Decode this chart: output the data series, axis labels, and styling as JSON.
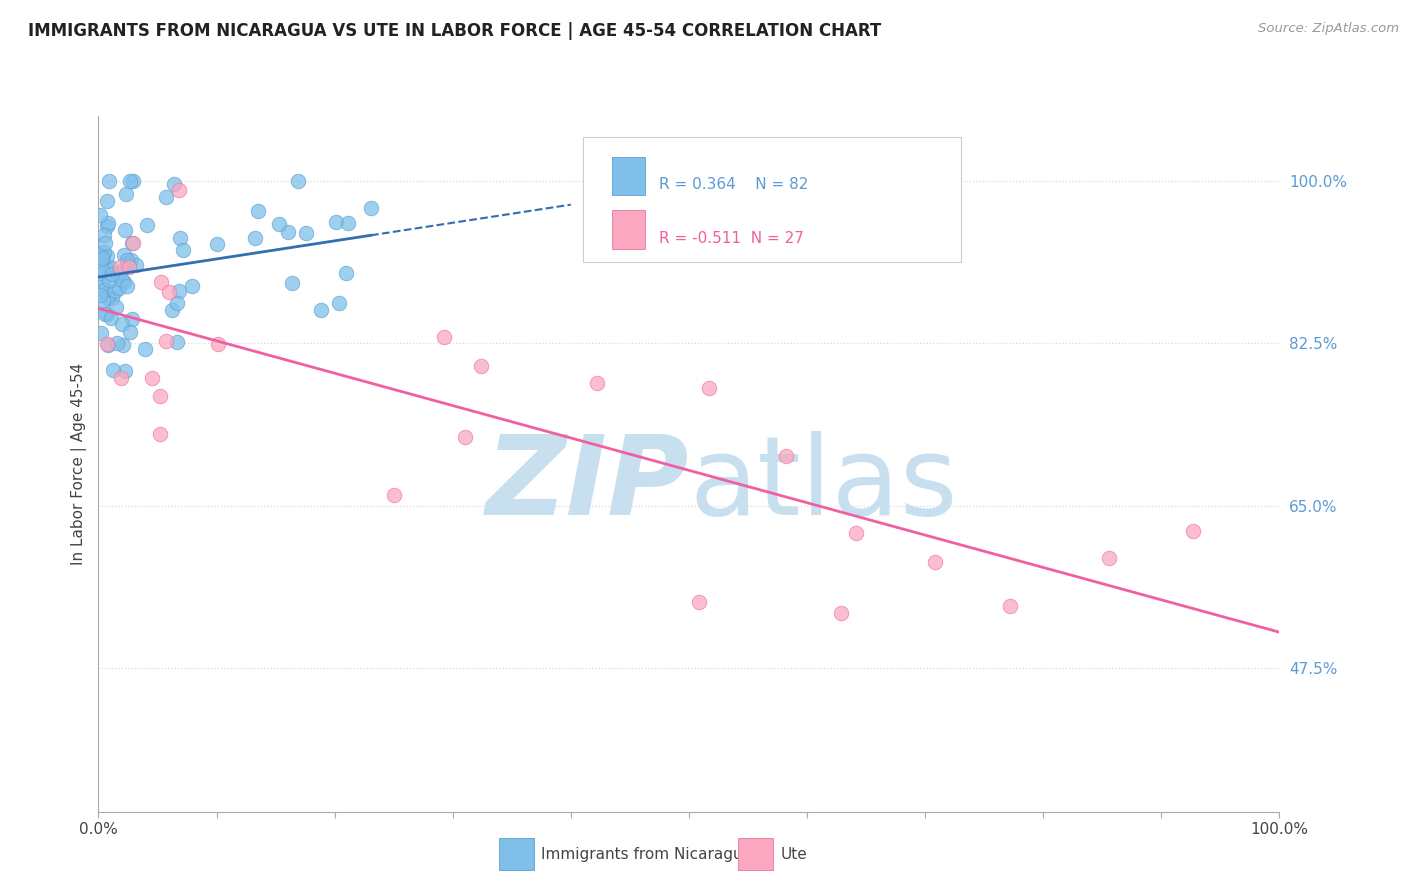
{
  "title": "IMMIGRANTS FROM NICARAGUA VS UTE IN LABOR FORCE | AGE 45-54 CORRELATION CHART",
  "source": "Source: ZipAtlas.com",
  "ylabel": "In Labor Force | Age 45-54",
  "ylabel_right_ticks": [
    100.0,
    82.5,
    65.0,
    47.5
  ],
  "legend_label1": "Immigrants from Nicaragua",
  "legend_label2": "Ute",
  "r1": 0.364,
  "n1": 82,
  "r2": -0.511,
  "n2": 27,
  "blue_color": "#7fbfea",
  "pink_color": "#f9a8c0",
  "blue_edge_color": "#5aa0d0",
  "pink_edge_color": "#f070a0",
  "blue_line_color": "#3070b0",
  "pink_line_color": "#f060a0",
  "xlim": [
    0.0,
    100.0
  ],
  "ylim": [
    32.0,
    107.0
  ],
  "background_color": "#ffffff",
  "watermark_zip": "ZIP",
  "watermark_atlas": "atlas",
  "watermark_color": "#c8dff0",
  "seed": 42
}
